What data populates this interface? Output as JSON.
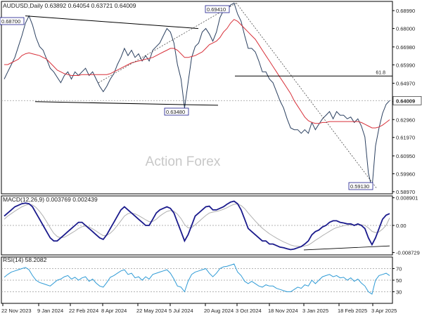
{
  "header": {
    "symbol_line": "AUDUSD,Daily  0.63892 0.64054 0.63721 0.64009"
  },
  "watermark": "Action Forex",
  "colors": {
    "price": "#2b4060",
    "ma": "#d8313a",
    "macd_line": "#1a1a8c",
    "signal_line": "#b0b0b0",
    "rsi_line": "#2f9bd6",
    "grid": "#9a9a9a",
    "trendline": "#000000",
    "current_price_bg": "#ffffff",
    "frame": "#000000"
  },
  "chart_data": [
    {
      "type": "line",
      "panel": "price",
      "title": "AUDUSD,Daily",
      "ohlc_last": {
        "open": 0.63892,
        "high": 0.64054,
        "low": 0.63721,
        "close": 0.64009
      },
      "y_ticks": [
        "0.68990",
        "0.68000",
        "0.66980",
        "0.65990",
        "0.64970",
        "0.63960",
        "0.62960",
        "0.61970",
        "0.60950",
        "0.59960",
        "0.58970"
      ],
      "ylim": [
        0.5885,
        0.695
      ],
      "x_ticks": [
        "22 Nov 2023",
        "9 Jan 2024",
        "22 Feb 2024",
        "8 Apr 2024",
        "22 May 2024",
        "5 Jul 2024",
        "20 Aug 2024",
        "3 Oct 2024",
        "18 Nov 2024",
        "3 Jan 2025",
        "18 Feb 2025",
        "3 Apr 2025"
      ],
      "current_price": "0.64009",
      "series": [
        {
          "values": [
            0.652,
            0.656,
            0.66,
            0.664,
            0.67,
            0.676,
            0.683,
            0.687,
            0.682,
            0.675,
            0.67,
            0.668,
            0.663,
            0.658,
            0.656,
            0.653,
            0.65,
            0.654,
            0.656,
            0.652,
            0.656,
            0.654,
            0.656,
            0.658,
            0.654,
            0.656,
            0.652,
            0.648,
            0.645,
            0.648,
            0.652,
            0.655,
            0.66,
            0.664,
            0.669,
            0.665,
            0.668,
            0.664,
            0.666,
            0.662,
            0.665,
            0.662,
            0.668,
            0.67,
            0.672,
            0.676,
            0.68,
            0.678,
            0.672,
            0.66,
            0.652,
            0.636,
            0.65,
            0.664,
            0.67,
            0.672,
            0.678,
            0.68,
            0.677,
            0.673,
            0.678,
            0.686,
            0.69,
            0.69,
            0.693,
            0.6941,
            0.688,
            0.684,
            0.676,
            0.669,
            0.669,
            0.667,
            0.662,
            0.656,
            0.656,
            0.652,
            0.65,
            0.645,
            0.64,
            0.636,
            0.63,
            0.625,
            0.624,
            0.624,
            0.622,
            0.624,
            0.622,
            0.628,
            0.624,
            0.627,
            0.63,
            0.632,
            0.634,
            0.63,
            0.634,
            0.632,
            0.632,
            0.63,
            0.631,
            0.628,
            0.63,
            0.626,
            0.62,
            0.6,
            0.5913,
            0.615,
            0.625,
            0.633,
            0.638,
            0.6401
          ]
        },
        {
          "name": "MA",
          "values": [
            0.66,
            0.66,
            0.661,
            0.662,
            0.663,
            0.665,
            0.666,
            0.6665,
            0.666,
            0.6655,
            0.665,
            0.664,
            0.663,
            0.661,
            0.659,
            0.657,
            0.656,
            0.655,
            0.6545,
            0.654,
            0.654,
            0.654,
            0.6545,
            0.6545,
            0.6545,
            0.6545,
            0.6545,
            0.6545,
            0.6545,
            0.6545,
            0.655,
            0.656,
            0.657,
            0.658,
            0.659,
            0.66,
            0.661,
            0.6615,
            0.662,
            0.6625,
            0.663,
            0.6635,
            0.664,
            0.665,
            0.666,
            0.667,
            0.668,
            0.669,
            0.669,
            0.668,
            0.666,
            0.664,
            0.664,
            0.6645,
            0.665,
            0.666,
            0.667,
            0.669,
            0.671,
            0.672,
            0.673,
            0.675,
            0.678,
            0.68,
            0.683,
            0.685,
            0.684,
            0.682,
            0.68,
            0.678,
            0.676,
            0.674,
            0.671,
            0.668,
            0.665,
            0.662,
            0.659,
            0.656,
            0.653,
            0.65,
            0.647,
            0.644,
            0.64,
            0.637,
            0.634,
            0.631,
            0.629,
            0.628,
            0.6275,
            0.6275,
            0.628,
            0.628,
            0.6285,
            0.6285,
            0.6285,
            0.6285,
            0.6285,
            0.6285,
            0.6285,
            0.6285,
            0.6285,
            0.628,
            0.627,
            0.626,
            0.625,
            0.625,
            0.6255,
            0.6265,
            0.628,
            0.6295
          ]
        }
      ],
      "annotations": [
        {
          "label": "0.68700",
          "value": 0.687
        },
        {
          "label": "0.69410",
          "value": 0.6941
        },
        {
          "label": "0.63480",
          "value": 0.6348
        },
        {
          "label": "0.59130",
          "value": 0.5913
        },
        {
          "label": "61.8",
          "value": 0.6537
        }
      ]
    },
    {
      "type": "line",
      "panel": "macd",
      "title": "MACD(12,26,9) 0.003769 0.002439",
      "y_ticks": [
        "0.008901",
        "0.00",
        "-0.008729"
      ],
      "ylim": [
        -0.0095,
        0.0095
      ],
      "series": [
        {
          "values": [
            0.003,
            0.004,
            0.005,
            0.006,
            0.0065,
            0.007,
            0.0072,
            0.007,
            0.006,
            0.004,
            0.002,
            0.0,
            -0.002,
            -0.004,
            -0.005,
            -0.005,
            -0.004,
            -0.003,
            -0.002,
            -0.001,
            0.0,
            0.001,
            0.001,
            0.0,
            -0.001,
            -0.002,
            -0.003,
            -0.004,
            -0.0045,
            -0.003,
            -0.001,
            0.001,
            0.003,
            0.005,
            0.006,
            0.005,
            0.004,
            0.003,
            0.002,
            0.001,
            0.0,
            0.0,
            0.002,
            0.004,
            0.005,
            0.0055,
            0.006,
            0.0055,
            0.004,
            0.001,
            -0.002,
            -0.005,
            -0.003,
            0.0,
            0.003,
            0.004,
            0.005,
            0.006,
            0.0062,
            0.005,
            0.005,
            0.0055,
            0.006,
            0.0068,
            0.0075,
            0.0078,
            0.007,
            0.005,
            0.002,
            -0.001,
            -0.002,
            -0.003,
            -0.004,
            -0.005,
            -0.005,
            -0.006,
            -0.006,
            -0.0065,
            -0.007,
            -0.0072,
            -0.0075,
            -0.0078,
            -0.0076,
            -0.0072,
            -0.0068,
            -0.006,
            -0.005,
            -0.003,
            -0.002,
            -0.0015,
            -0.0005,
            0.0,
            0.001,
            0.0015,
            0.0015,
            0.001,
            0.0008,
            0.0005,
            0.0005,
            0.0,
            0.0005,
            0.0,
            -0.001,
            -0.004,
            -0.0062,
            -0.004,
            -0.001,
            0.002,
            0.0033,
            0.0038
          ]
        },
        {
          "values": [
            0.002,
            0.003,
            0.0038,
            0.0046,
            0.0053,
            0.006,
            0.0065,
            0.0068,
            0.0066,
            0.0058,
            0.0045,
            0.003,
            0.0012,
            -0.0008,
            -0.0025,
            -0.0036,
            -0.004,
            -0.0038,
            -0.0032,
            -0.0025,
            -0.0018,
            -0.001,
            -0.0004,
            -0.0002,
            -0.0005,
            -0.0011,
            -0.0018,
            -0.0026,
            -0.0033,
            -0.0032,
            -0.0025,
            -0.0014,
            0.0,
            0.0015,
            0.003,
            0.0038,
            0.004,
            0.0037,
            0.0032,
            0.0025,
            0.0018,
            0.0012,
            0.0013,
            0.002,
            0.003,
            0.0038,
            0.0045,
            0.0048,
            0.0046,
            0.0036,
            0.0022,
            0.0003,
            -0.0008,
            -0.0007,
            0.0002,
            0.0012,
            0.0022,
            0.0032,
            0.004,
            0.0043,
            0.0045,
            0.0048,
            0.0052,
            0.0057,
            0.0063,
            0.0068,
            0.0069,
            0.0064,
            0.0054,
            0.004,
            0.0027,
            0.0014,
            0.0002,
            -0.0009,
            -0.0018,
            -0.0027,
            -0.0034,
            -0.0041,
            -0.0047,
            -0.0053,
            -0.0058,
            -0.0063,
            -0.0066,
            -0.0067,
            -0.0068,
            -0.0066,
            -0.0063,
            -0.0056,
            -0.0048,
            -0.0041,
            -0.0033,
            -0.0026,
            -0.0019,
            -0.0012,
            -0.0007,
            -0.0004,
            -0.0001,
            0.0001,
            0.0002,
            0.0002,
            0.0002,
            0.0002,
            0.0,
            -0.0008,
            -0.0019,
            -0.0023,
            -0.0021,
            -0.0012,
            0.0,
            0.0024
          ]
        }
      ]
    },
    {
      "type": "line",
      "panel": "rsi",
      "title": "RSI(14) 58.2082",
      "y_ticks": [
        "70",
        "50",
        "30"
      ],
      "ylim": [
        10,
        90
      ],
      "series": [
        {
          "values": [
            55,
            60,
            64,
            66,
            68,
            70,
            72,
            68,
            58,
            50,
            46,
            44,
            42,
            40,
            45,
            50,
            52,
            56,
            58,
            52,
            55,
            50,
            54,
            56,
            48,
            52,
            45,
            40,
            38,
            46,
            55,
            58,
            62,
            66,
            68,
            60,
            62,
            54,
            56,
            50,
            56,
            52,
            60,
            62,
            64,
            66,
            68,
            62,
            52,
            40,
            38,
            30,
            48,
            60,
            64,
            66,
            68,
            70,
            62,
            56,
            62,
            70,
            73,
            74,
            76,
            78,
            64,
            58,
            48,
            44,
            48,
            44,
            40,
            38,
            42,
            40,
            40,
            36,
            34,
            32,
            30,
            30,
            34,
            38,
            36,
            42,
            40,
            50,
            44,
            50,
            56,
            58,
            60,
            56,
            58,
            54,
            55,
            50,
            54,
            48,
            52,
            45,
            40,
            30,
            26,
            50,
            58,
            60,
            62,
            58
          ]
        }
      ]
    }
  ]
}
